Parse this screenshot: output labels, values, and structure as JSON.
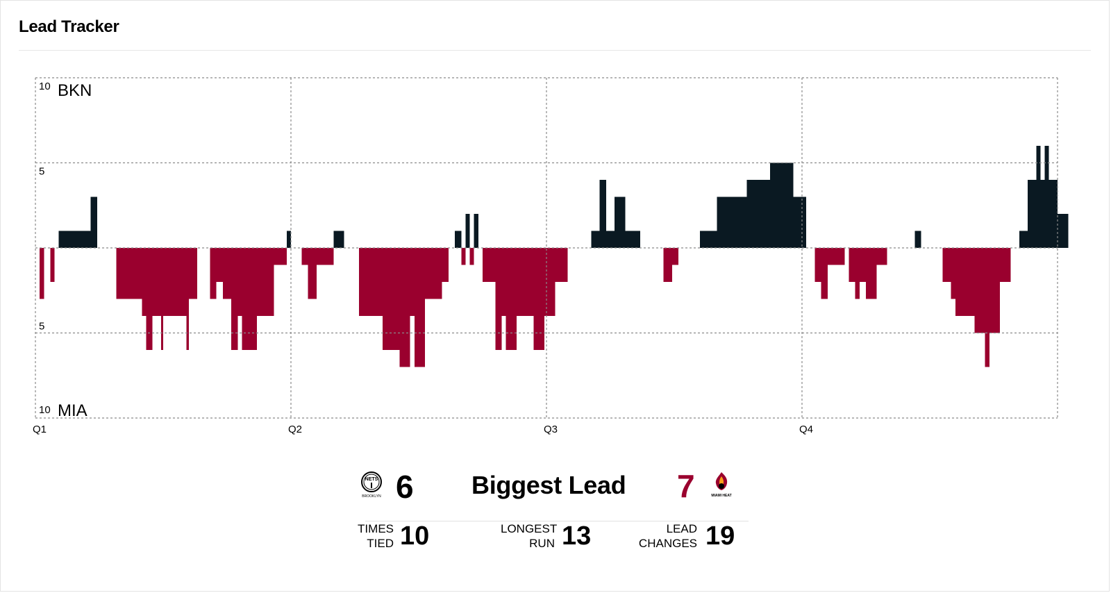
{
  "header": {
    "title": "Lead Tracker"
  },
  "colors": {
    "home": "#0a1922",
    "away": "#9a002e",
    "grid": "#8a8a8a"
  },
  "chart_data": {
    "type": "area",
    "title": "",
    "y_top_team": "BKN",
    "y_bottom_team": "MIA",
    "y_ticks": [
      {
        "value": 10,
        "label": "10"
      },
      {
        "value": 5,
        "label": "5"
      },
      {
        "value": -5,
        "label": "5"
      },
      {
        "value": -10,
        "label": "10"
      }
    ],
    "ylim": [
      -10,
      10
    ],
    "x_ticks": [
      "Q1",
      "Q2",
      "Q3",
      "Q4"
    ],
    "xlim": [
      0,
      48
    ],
    "x_unit": "game minutes",
    "series": [
      {
        "points": [
          [
            0,
            0
          ],
          [
            0.2,
            -3
          ],
          [
            0.4,
            0
          ],
          [
            0.7,
            -2
          ],
          [
            0.9,
            0
          ],
          [
            1.1,
            1
          ],
          [
            2.5,
            1
          ],
          [
            2.6,
            3
          ],
          [
            2.9,
            0
          ],
          [
            3.8,
            -3
          ],
          [
            5.0,
            -4
          ],
          [
            5.2,
            -6
          ],
          [
            5.5,
            -4
          ],
          [
            5.9,
            -6
          ],
          [
            6.0,
            -4
          ],
          [
            7.1,
            -6
          ],
          [
            7.2,
            -3
          ],
          [
            7.6,
            0
          ],
          [
            8.2,
            -3
          ],
          [
            8.5,
            -2
          ],
          [
            8.8,
            -3
          ],
          [
            9.2,
            -6
          ],
          [
            9.5,
            -4
          ],
          [
            9.7,
            -6
          ],
          [
            10.4,
            -4
          ],
          [
            11.2,
            -1
          ],
          [
            11.8,
            1
          ],
          [
            12.0,
            0
          ],
          [
            12.5,
            -1
          ],
          [
            12.8,
            -3
          ],
          [
            13.2,
            -1
          ],
          [
            14.0,
            1
          ],
          [
            14.5,
            0
          ],
          [
            15.2,
            -4
          ],
          [
            16.3,
            -6
          ],
          [
            17.1,
            -7
          ],
          [
            17.6,
            -4
          ],
          [
            17.8,
            -7
          ],
          [
            18.3,
            -3
          ],
          [
            19.1,
            -2
          ],
          [
            19.4,
            0
          ],
          [
            19.7,
            1
          ],
          [
            20.0,
            -1
          ],
          [
            20.2,
            2
          ],
          [
            20.4,
            -1
          ],
          [
            20.6,
            2
          ],
          [
            20.8,
            0
          ],
          [
            21.0,
            -2
          ],
          [
            21.3,
            -2
          ],
          [
            21.6,
            -6
          ],
          [
            21.9,
            -4
          ],
          [
            22.1,
            -6
          ],
          [
            22.6,
            -4
          ],
          [
            23.4,
            -6
          ],
          [
            23.9,
            -4
          ],
          [
            24.4,
            -2
          ],
          [
            25.0,
            0
          ],
          [
            26.1,
            1
          ],
          [
            26.5,
            4
          ],
          [
            26.8,
            1
          ],
          [
            27.2,
            3
          ],
          [
            27.7,
            1
          ],
          [
            28.4,
            0
          ],
          [
            29.5,
            -2
          ],
          [
            29.9,
            -1
          ],
          [
            30.2,
            0
          ],
          [
            31.2,
            1
          ],
          [
            32.0,
            3
          ],
          [
            33.4,
            4
          ],
          [
            34.5,
            5
          ],
          [
            35.6,
            3
          ],
          [
            36.2,
            0
          ],
          [
            36.6,
            -2
          ],
          [
            36.9,
            -3
          ],
          [
            37.2,
            -1
          ],
          [
            38.0,
            0
          ],
          [
            38.2,
            -2
          ],
          [
            38.5,
            -3
          ],
          [
            38.7,
            -2
          ],
          [
            39.0,
            -3
          ],
          [
            39.5,
            -1
          ],
          [
            40.0,
            0
          ],
          [
            41.0,
            0
          ],
          [
            41.3,
            1
          ],
          [
            41.6,
            0
          ],
          [
            42.6,
            -2
          ],
          [
            43.0,
            -3
          ],
          [
            43.2,
            -4
          ],
          [
            44.1,
            -5
          ],
          [
            44.6,
            -7
          ],
          [
            44.8,
            -5
          ],
          [
            45.3,
            -2
          ],
          [
            45.8,
            0
          ],
          [
            46.2,
            1
          ],
          [
            46.6,
            4
          ],
          [
            47.0,
            6
          ],
          [
            47.2,
            4
          ],
          [
            47.4,
            6
          ],
          [
            47.6,
            4
          ],
          [
            48.0,
            2
          ],
          [
            48.5,
            0
          ]
        ]
      }
    ]
  },
  "stats": {
    "biggest_lead_label": "Biggest Lead",
    "home_biggest_lead": "6",
    "away_biggest_lead": "7",
    "times_tied_label_1": "TIMES",
    "times_tied_label_2": "TIED",
    "times_tied": "10",
    "longest_run_label_1": "LONGEST",
    "longest_run_label_2": "RUN",
    "longest_run": "13",
    "lead_changes_label_1": "LEAD",
    "lead_changes_label_2": "CHANGES",
    "lead_changes": "19"
  },
  "logos": {
    "home_logo_icon": "nets-logo-icon",
    "home_logo_text_top": "NETS",
    "home_logo_text_bottom": "BROOKLYN",
    "away_logo_icon": "heat-logo-icon",
    "away_logo_text": "MIAMI HEAT"
  }
}
